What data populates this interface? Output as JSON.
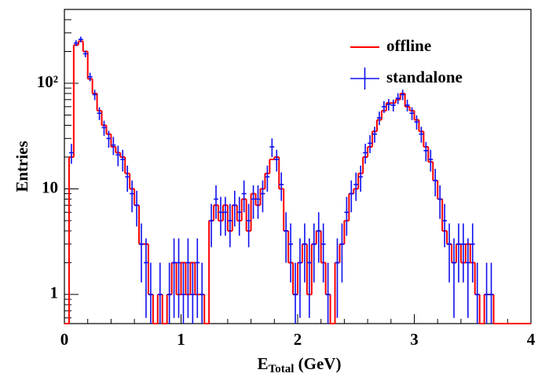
{
  "chart_data": {
    "type": "histogram",
    "x_label": {
      "main": "E",
      "sub": "Total",
      "rest": " (GeV)"
    },
    "y_label": "Entries",
    "log_y": true,
    "legend_position": "upper-right",
    "bins": [
      0,
      0.04,
      0.08,
      0.12,
      0.16,
      0.2,
      0.24,
      0.28,
      0.32,
      0.36,
      0.4,
      0.44,
      0.48,
      0.52,
      0.56,
      0.6,
      0.64,
      0.68,
      0.72,
      0.76,
      0.8,
      0.84,
      0.88,
      0.92,
      0.96,
      1,
      1.04,
      1.08,
      1.12,
      1.16,
      1.2,
      1.24,
      1.28,
      1.32,
      1.36,
      1.4,
      1.44,
      1.48,
      1.52,
      1.56,
      1.6,
      1.64,
      1.68,
      1.72,
      1.76,
      1.8,
      1.84,
      1.88,
      1.92,
      1.96,
      2,
      2.04,
      2.08,
      2.12,
      2.16,
      2.2,
      2.24,
      2.28,
      2.32,
      2.36,
      2.4,
      2.44,
      2.48,
      2.52,
      2.56,
      2.6,
      2.64,
      2.68,
      2.72,
      2.76,
      2.8,
      2.84,
      2.88,
      2.92,
      2.96,
      3,
      3.04,
      3.08,
      3.12,
      3.16,
      3.2,
      3.24,
      3.28,
      3.32,
      3.36,
      3.4,
      3.44,
      3.48,
      3.52,
      3.56,
      3.6,
      3.64,
      3.68,
      3.72,
      3.76,
      3.8,
      3.84,
      3.88,
      3.92,
      3.96,
      4
    ],
    "series": [
      {
        "name": "offline",
        "style": "step",
        "color": "#ff0000",
        "values": [
          0,
          20,
          230,
          250,
          200,
          110,
          80,
          55,
          40,
          33,
          25,
          22,
          20,
          14,
          10,
          7,
          3,
          3,
          1,
          0,
          1,
          0,
          1,
          2,
          1,
          2,
          1,
          2,
          1,
          1,
          0,
          5,
          7,
          5,
          7,
          4,
          7,
          5,
          8,
          4,
          9,
          7,
          10,
          14,
          19,
          20,
          10,
          4,
          2,
          1,
          2,
          3,
          1,
          3,
          4,
          2,
          1,
          0,
          2,
          3,
          5,
          9,
          10,
          14,
          20,
          25,
          35,
          45,
          55,
          65,
          65,
          70,
          80,
          60,
          55,
          45,
          35,
          25,
          18,
          12,
          8,
          4,
          3,
          2,
          3,
          2,
          3,
          2,
          1,
          0,
          1,
          1,
          0,
          0,
          0,
          0,
          0,
          0,
          0,
          0
        ]
      },
      {
        "name": "standalone",
        "style": "errorbar",
        "color": "#1010ee",
        "values": [
          0,
          22,
          240,
          260,
          190,
          115,
          78,
          52,
          38,
          30,
          26,
          21,
          19,
          13,
          9,
          7,
          3,
          2,
          1,
          0,
          1,
          0,
          1,
          2,
          2,
          1,
          2,
          1,
          2,
          1,
          0,
          5,
          8,
          6,
          6,
          5,
          7,
          6,
          9,
          5,
          8,
          8,
          9,
          13,
          25,
          19,
          11,
          4,
          3,
          1,
          2,
          3,
          2,
          3,
          4,
          3,
          1,
          0,
          2,
          3,
          6,
          9,
          11,
          13,
          22,
          27,
          33,
          47,
          60,
          63,
          62,
          72,
          78,
          62,
          52,
          43,
          33,
          23,
          19,
          12,
          8,
          5,
          3,
          2,
          3,
          3,
          2,
          3,
          1,
          0,
          1,
          1,
          0,
          0,
          0,
          0,
          0,
          0,
          0,
          0
        ],
        "errors": [
          0,
          4.7,
          15.5,
          16.1,
          13.8,
          10.7,
          8.8,
          7.2,
          6.2,
          5.5,
          5.1,
          4.6,
          4.4,
          3.6,
          3,
          2.6,
          1.7,
          1.4,
          1,
          0,
          1,
          0,
          1,
          1.4,
          1.4,
          1,
          1.4,
          1,
          1.4,
          1,
          0,
          2.2,
          2.8,
          2.4,
          2.4,
          2.2,
          2.6,
          2.4,
          3,
          2.2,
          2.8,
          2.8,
          3,
          3.6,
          5,
          4.4,
          3.3,
          2,
          1.7,
          1,
          1.4,
          1.7,
          1.4,
          1.7,
          2,
          1.7,
          1,
          0,
          1.4,
          1.7,
          2.4,
          3,
          3.3,
          3.6,
          4.7,
          5.2,
          5.7,
          6.9,
          7.7,
          7.9,
          7.9,
          8.5,
          8.8,
          7.9,
          7.2,
          6.6,
          5.7,
          4.8,
          4.4,
          3.5,
          2.8,
          2.2,
          1.7,
          1.4,
          1.7,
          1.7,
          1.4,
          1.7,
          1,
          0,
          1,
          1,
          0,
          0,
          0,
          0,
          0,
          0,
          0,
          0
        ]
      }
    ],
    "xlim": [
      0,
      4
    ],
    "xticks": [
      0,
      1,
      2,
      3,
      4
    ],
    "xminorticks": [
      0.2,
      0.4,
      0.6,
      0.8,
      1.2,
      1.4,
      1.6,
      1.8,
      2.2,
      2.4,
      2.6,
      2.8,
      3.2,
      3.4,
      3.6,
      3.8
    ],
    "ylim": [
      0.53,
      500
    ],
    "yticks": [
      1,
      10,
      {
        "value": 100,
        "label": "10²"
      }
    ],
    "yminorticks": [
      0.6,
      0.7,
      0.8,
      0.9,
      2,
      3,
      4,
      5,
      6,
      7,
      8,
      9,
      20,
      30,
      40,
      50,
      60,
      70,
      80,
      90,
      200,
      300,
      400
    ]
  }
}
